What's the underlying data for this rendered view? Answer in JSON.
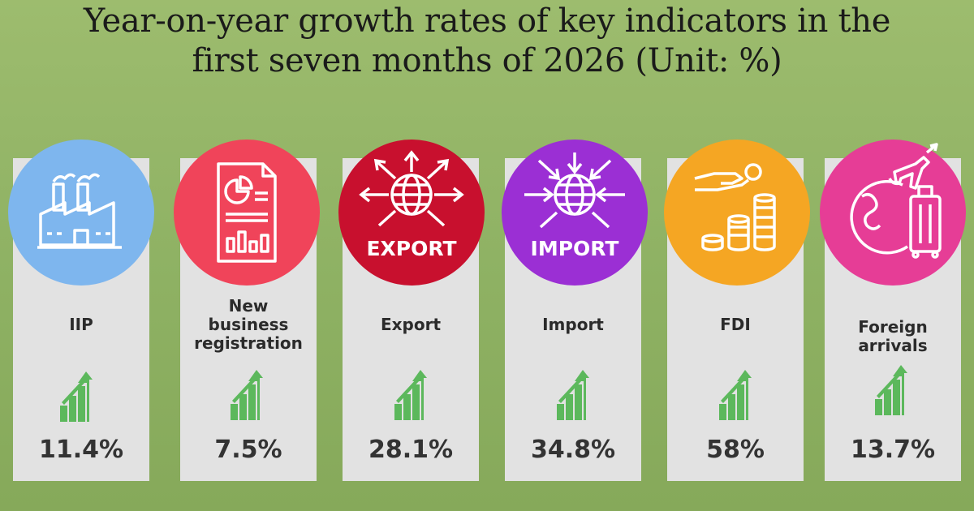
{
  "title": {
    "line1": "Year-on-year growth rates of  key indicators in  the",
    "line2": "first seven months of 2026 (Unit: %)"
  },
  "indicators": [
    {
      "label_lines": [
        "IIP"
      ],
      "value": "11.4%",
      "color": "#7eb6ee",
      "icon": "factory-icon"
    },
    {
      "label_lines": [
        "New",
        "business",
        "registration"
      ],
      "value": "7.5%",
      "color": "#f0445a",
      "icon": "report-document-icon"
    },
    {
      "label_lines": [
        "Export"
      ],
      "value": "28.1%",
      "color": "#c8102e",
      "icon": "globe-outward-arrows-icon",
      "badge": "EXPORT"
    },
    {
      "label_lines": [
        "Import"
      ],
      "value": "34.8%",
      "color": "#9b2fd4",
      "icon": "globe-inward-arrows-icon",
      "badge": "IMPORT"
    },
    {
      "label_lines": [
        "FDI"
      ],
      "value": "58%",
      "color": "#f5a623",
      "icon": "hand-coins-icon"
    },
    {
      "label_lines": [
        "Foreign",
        "arrivals"
      ],
      "value": "13.7%",
      "color": "#e63d96",
      "icon": "globe-plane-luggage-icon"
    }
  ],
  "trend_icon": "growth-arrow-icon",
  "trend_color": "#5cb85c"
}
